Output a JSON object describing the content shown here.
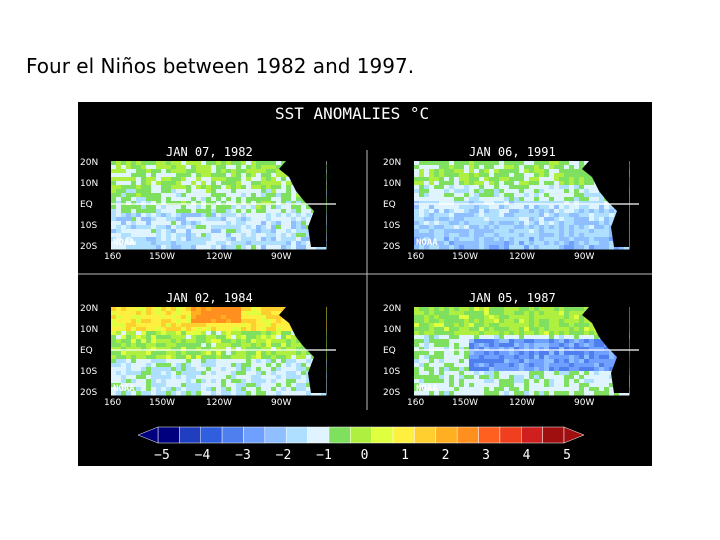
{
  "slide": {
    "title": "Four el Niños between 1982 and 1997."
  },
  "figure": {
    "title": "SST ANOMALIES °C",
    "panels": [
      {
        "date": "JAN 07, 1982",
        "lat_labels": [
          "20N",
          "10N",
          "EQ",
          "10S",
          "20S"
        ],
        "lon_labels": [
          "160",
          "150W",
          "120W",
          "90W"
        ],
        "credit": "NOAA",
        "pattern": "normal"
      },
      {
        "date": "JAN 06, 1991",
        "lat_labels": [
          "20N",
          "10N",
          "EQ",
          "10S",
          "20S"
        ],
        "lon_labels": [
          "160",
          "150W",
          "120W",
          "90W"
        ],
        "credit": "NOAA",
        "pattern": "cool"
      },
      {
        "date": "JAN 02, 1984",
        "lat_labels": [
          "20N",
          "10N",
          "EQ",
          "10S",
          "20S"
        ],
        "lon_labels": [
          "160",
          "150W",
          "120W",
          "90W"
        ],
        "credit": "NOAA",
        "pattern": "warm"
      },
      {
        "date": "JAN 05, 1987",
        "lat_labels": [
          "20N",
          "10N",
          "EQ",
          "10S",
          "20S"
        ],
        "lon_labels": [
          "160",
          "150W",
          "120W",
          "90W"
        ],
        "credit": "NOAA",
        "pattern": "cold-tongue"
      }
    ],
    "colorbar": {
      "labels": [
        "−5",
        "−4",
        "−3",
        "−2",
        "−1",
        "0",
        "1",
        "2",
        "3",
        "4",
        "5"
      ],
      "colors": [
        "#00007f",
        "#1f3fbf",
        "#2f5fdf",
        "#4f7fef",
        "#6f9fff",
        "#8fbfff",
        "#afdfff",
        "#dff4ff",
        "#7fdf5f",
        "#afef3f",
        "#dfff3f",
        "#ffef3f",
        "#ffcf2f",
        "#ffaf1f",
        "#ff8f1f",
        "#ff5f1f",
        "#ef3f1f",
        "#cf1f1f",
        "#9f0f0f"
      ]
    },
    "colors": {
      "background": "#000000",
      "land": "#000000",
      "white_line": "#ffffff"
    }
  }
}
